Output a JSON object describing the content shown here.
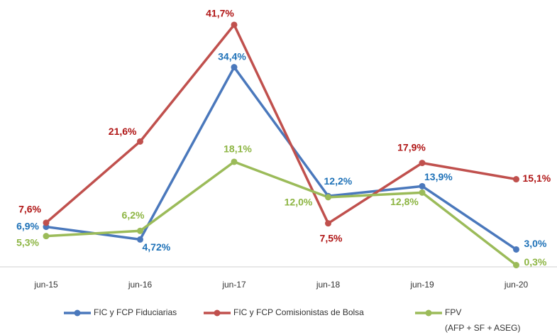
{
  "chart_data": {
    "type": "line",
    "categories": [
      "jun-15",
      "jun-16",
      "jun-17",
      "jun-18",
      "jun-19",
      "jun-20"
    ],
    "ylim": [
      0,
      45
    ],
    "series": [
      {
        "name": "FIC y FCP Fiduciarias",
        "color": "#4a78bc",
        "label_color": "#1f72b8",
        "values": [
          6.9,
          4.72,
          34.4,
          12.2,
          13.9,
          3.0
        ],
        "value_labels": [
          "6,9%",
          "4,72%",
          "34,4%",
          "12,2%",
          "13,9%",
          "3,0%"
        ]
      },
      {
        "name": "FIC y FCP Comisionistas de Bolsa",
        "color": "#c0504d",
        "label_color": "#b01616",
        "values": [
          7.6,
          21.6,
          41.7,
          7.5,
          17.9,
          15.1
        ],
        "value_labels": [
          "7,6%",
          "21,6%",
          "41,7%",
          "7,5%",
          "17,9%",
          "15,1%"
        ]
      },
      {
        "name": "FPV",
        "legend_note": "(AFP + SF + ASEG)",
        "color": "#9bbb59",
        "label_color": "#8db543",
        "values": [
          5.3,
          6.2,
          18.1,
          12.0,
          12.8,
          0.3
        ],
        "value_labels": [
          "5,3%",
          "6,2%",
          "18,1%",
          "12,0%",
          "12,8%",
          "0,3%"
        ]
      }
    ]
  }
}
